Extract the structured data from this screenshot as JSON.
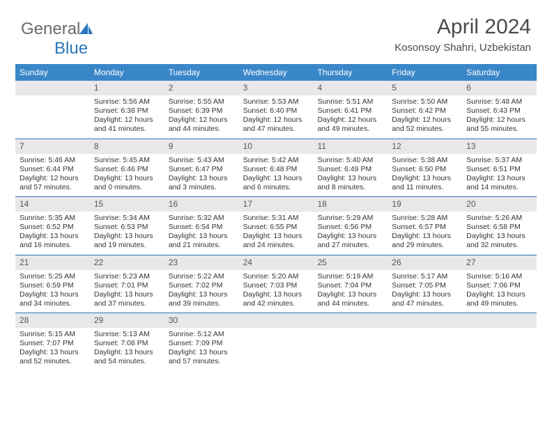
{
  "brand": {
    "part1": "General",
    "part2": "Blue"
  },
  "title": "April 2024",
  "location": "Kosonsoy Shahri, Uzbekistan",
  "colors": {
    "header_bg": "#3a87c8",
    "accent": "#2a75bb",
    "gray_row": "#e8e8e8",
    "text": "#333333"
  },
  "day_labels": [
    "Sunday",
    "Monday",
    "Tuesday",
    "Wednesday",
    "Thursday",
    "Friday",
    "Saturday"
  ],
  "weeks": [
    [
      {
        "empty": true
      },
      {
        "day": "1",
        "sunrise": "Sunrise: 5:56 AM",
        "sunset": "Sunset: 6:38 PM",
        "daylight1": "Daylight: 12 hours",
        "daylight2": "and 41 minutes."
      },
      {
        "day": "2",
        "sunrise": "Sunrise: 5:55 AM",
        "sunset": "Sunset: 6:39 PM",
        "daylight1": "Daylight: 12 hours",
        "daylight2": "and 44 minutes."
      },
      {
        "day": "3",
        "sunrise": "Sunrise: 5:53 AM",
        "sunset": "Sunset: 6:40 PM",
        "daylight1": "Daylight: 12 hours",
        "daylight2": "and 47 minutes."
      },
      {
        "day": "4",
        "sunrise": "Sunrise: 5:51 AM",
        "sunset": "Sunset: 6:41 PM",
        "daylight1": "Daylight: 12 hours",
        "daylight2": "and 49 minutes."
      },
      {
        "day": "5",
        "sunrise": "Sunrise: 5:50 AM",
        "sunset": "Sunset: 6:42 PM",
        "daylight1": "Daylight: 12 hours",
        "daylight2": "and 52 minutes."
      },
      {
        "day": "6",
        "sunrise": "Sunrise: 5:48 AM",
        "sunset": "Sunset: 6:43 PM",
        "daylight1": "Daylight: 12 hours",
        "daylight2": "and 55 minutes."
      }
    ],
    [
      {
        "day": "7",
        "sunrise": "Sunrise: 5:46 AM",
        "sunset": "Sunset: 6:44 PM",
        "daylight1": "Daylight: 12 hours",
        "daylight2": "and 57 minutes."
      },
      {
        "day": "8",
        "sunrise": "Sunrise: 5:45 AM",
        "sunset": "Sunset: 6:46 PM",
        "daylight1": "Daylight: 13 hours",
        "daylight2": "and 0 minutes."
      },
      {
        "day": "9",
        "sunrise": "Sunrise: 5:43 AM",
        "sunset": "Sunset: 6:47 PM",
        "daylight1": "Daylight: 13 hours",
        "daylight2": "and 3 minutes."
      },
      {
        "day": "10",
        "sunrise": "Sunrise: 5:42 AM",
        "sunset": "Sunset: 6:48 PM",
        "daylight1": "Daylight: 13 hours",
        "daylight2": "and 6 minutes."
      },
      {
        "day": "11",
        "sunrise": "Sunrise: 5:40 AM",
        "sunset": "Sunset: 6:49 PM",
        "daylight1": "Daylight: 13 hours",
        "daylight2": "and 8 minutes."
      },
      {
        "day": "12",
        "sunrise": "Sunrise: 5:38 AM",
        "sunset": "Sunset: 6:50 PM",
        "daylight1": "Daylight: 13 hours",
        "daylight2": "and 11 minutes."
      },
      {
        "day": "13",
        "sunrise": "Sunrise: 5:37 AM",
        "sunset": "Sunset: 6:51 PM",
        "daylight1": "Daylight: 13 hours",
        "daylight2": "and 14 minutes."
      }
    ],
    [
      {
        "day": "14",
        "sunrise": "Sunrise: 5:35 AM",
        "sunset": "Sunset: 6:52 PM",
        "daylight1": "Daylight: 13 hours",
        "daylight2": "and 16 minutes."
      },
      {
        "day": "15",
        "sunrise": "Sunrise: 5:34 AM",
        "sunset": "Sunset: 6:53 PM",
        "daylight1": "Daylight: 13 hours",
        "daylight2": "and 19 minutes."
      },
      {
        "day": "16",
        "sunrise": "Sunrise: 5:32 AM",
        "sunset": "Sunset: 6:54 PM",
        "daylight1": "Daylight: 13 hours",
        "daylight2": "and 21 minutes."
      },
      {
        "day": "17",
        "sunrise": "Sunrise: 5:31 AM",
        "sunset": "Sunset: 6:55 PM",
        "daylight1": "Daylight: 13 hours",
        "daylight2": "and 24 minutes."
      },
      {
        "day": "18",
        "sunrise": "Sunrise: 5:29 AM",
        "sunset": "Sunset: 6:56 PM",
        "daylight1": "Daylight: 13 hours",
        "daylight2": "and 27 minutes."
      },
      {
        "day": "19",
        "sunrise": "Sunrise: 5:28 AM",
        "sunset": "Sunset: 6:57 PM",
        "daylight1": "Daylight: 13 hours",
        "daylight2": "and 29 minutes."
      },
      {
        "day": "20",
        "sunrise": "Sunrise: 5:26 AM",
        "sunset": "Sunset: 6:58 PM",
        "daylight1": "Daylight: 13 hours",
        "daylight2": "and 32 minutes."
      }
    ],
    [
      {
        "day": "21",
        "sunrise": "Sunrise: 5:25 AM",
        "sunset": "Sunset: 6:59 PM",
        "daylight1": "Daylight: 13 hours",
        "daylight2": "and 34 minutes."
      },
      {
        "day": "22",
        "sunrise": "Sunrise: 5:23 AM",
        "sunset": "Sunset: 7:01 PM",
        "daylight1": "Daylight: 13 hours",
        "daylight2": "and 37 minutes."
      },
      {
        "day": "23",
        "sunrise": "Sunrise: 5:22 AM",
        "sunset": "Sunset: 7:02 PM",
        "daylight1": "Daylight: 13 hours",
        "daylight2": "and 39 minutes."
      },
      {
        "day": "24",
        "sunrise": "Sunrise: 5:20 AM",
        "sunset": "Sunset: 7:03 PM",
        "daylight1": "Daylight: 13 hours",
        "daylight2": "and 42 minutes."
      },
      {
        "day": "25",
        "sunrise": "Sunrise: 5:19 AM",
        "sunset": "Sunset: 7:04 PM",
        "daylight1": "Daylight: 13 hours",
        "daylight2": "and 44 minutes."
      },
      {
        "day": "26",
        "sunrise": "Sunrise: 5:17 AM",
        "sunset": "Sunset: 7:05 PM",
        "daylight1": "Daylight: 13 hours",
        "daylight2": "and 47 minutes."
      },
      {
        "day": "27",
        "sunrise": "Sunrise: 5:16 AM",
        "sunset": "Sunset: 7:06 PM",
        "daylight1": "Daylight: 13 hours",
        "daylight2": "and 49 minutes."
      }
    ],
    [
      {
        "day": "28",
        "sunrise": "Sunrise: 5:15 AM",
        "sunset": "Sunset: 7:07 PM",
        "daylight1": "Daylight: 13 hours",
        "daylight2": "and 52 minutes."
      },
      {
        "day": "29",
        "sunrise": "Sunrise: 5:13 AM",
        "sunset": "Sunset: 7:08 PM",
        "daylight1": "Daylight: 13 hours",
        "daylight2": "and 54 minutes."
      },
      {
        "day": "30",
        "sunrise": "Sunrise: 5:12 AM",
        "sunset": "Sunset: 7:09 PM",
        "daylight1": "Daylight: 13 hours",
        "daylight2": "and 57 minutes."
      },
      {
        "empty": true
      },
      {
        "empty": true
      },
      {
        "empty": true
      },
      {
        "empty": true
      }
    ]
  ]
}
